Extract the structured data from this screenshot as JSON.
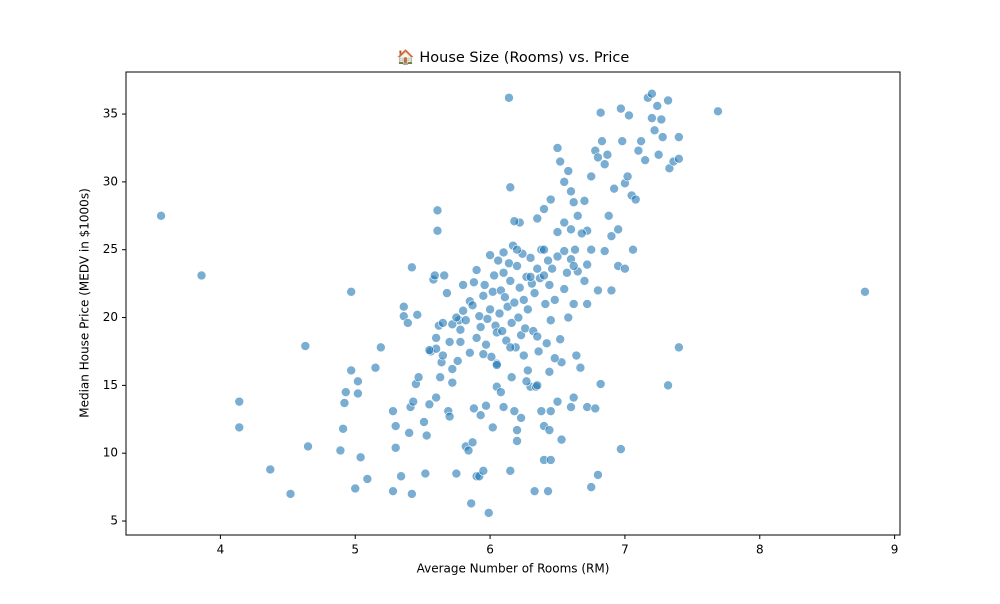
{
  "chart_data": {
    "type": "scatter",
    "title": "🏠 House Size (Rooms) vs. Price",
    "x_label": "Average Number of Rooms (RM)",
    "y_label": "Median House Price (MEDV in $1000s)",
    "color": "#1f77b4",
    "grid": false,
    "xlim": [
      3.3,
      9.04
    ],
    "ylim": [
      3.97,
      38.1
    ],
    "xticks": [
      4,
      5,
      6,
      7,
      8,
      9
    ],
    "yticks": [
      5,
      10,
      15,
      20,
      25,
      30,
      35
    ],
    "x": [
      3.56,
      3.86,
      4.14,
      4.14,
      4.37,
      4.52,
      4.63,
      4.65,
      4.97,
      4.97,
      4.89,
      4.91,
      4.92,
      4.93,
      5.0,
      5.02,
      5.02,
      5.04,
      5.09,
      5.15,
      5.19,
      5.28,
      5.28,
      5.3,
      5.3,
      5.34,
      5.36,
      5.36,
      5.39,
      5.4,
      5.41,
      5.42,
      5.42,
      5.43,
      5.45,
      5.46,
      5.47,
      5.51,
      5.52,
      5.53,
      5.55,
      5.56,
      5.58,
      5.59,
      5.6,
      5.6,
      5.61,
      5.61,
      5.62,
      5.63,
      5.64,
      5.65,
      5.66,
      5.68,
      5.69,
      5.7,
      5.72,
      5.72,
      5.75,
      5.77,
      5.78,
      5.8,
      5.82,
      5.84,
      5.86,
      5.87,
      5.88,
      5.9,
      5.92,
      5.95,
      5.99,
      5.93,
      5.97,
      6.02,
      6.05,
      6.08,
      6.1,
      6.14,
      6.15,
      6.15,
      6.16,
      6.18,
      6.2,
      6.2,
      6.23,
      6.28,
      6.3,
      6.33,
      6.34,
      6.38,
      6.4,
      6.4,
      6.43,
      6.44,
      6.45,
      6.45,
      6.5,
      6.53,
      6.6,
      6.62,
      6.64,
      6.67,
      6.72,
      6.75,
      6.78,
      6.8,
      6.82,
      6.97,
      7.32,
      7.4,
      8.78,
      7.69,
      6.5,
      6.52,
      6.55,
      6.58,
      6.6,
      6.62,
      6.65,
      6.7,
      6.72,
      6.75,
      6.78,
      6.8,
      6.82,
      6.83,
      6.85,
      6.87,
      6.88,
      6.9,
      6.92,
      6.95,
      6.97,
      6.98,
      7.0,
      7.02,
      7.03,
      7.05,
      7.08,
      7.1,
      7.12,
      7.15,
      7.17,
      7.2,
      7.2,
      7.22,
      7.24,
      7.25,
      7.27,
      7.28,
      7.32,
      7.33,
      7.36,
      7.4,
      7.4,
      6.95,
      7.0,
      7.06,
      6.9,
      6.85,
      6.8,
      6.72,
      6.75,
      6.68,
      6.6,
      6.55,
      6.5,
      6.45,
      6.4,
      6.35,
      6.22,
      6.18,
      5.72,
      5.75,
      5.78,
      5.8,
      5.82,
      5.85,
      5.87,
      5.88,
      5.9,
      5.9,
      5.92,
      5.93,
      5.95,
      5.96,
      5.97,
      5.98,
      6.0,
      6.0,
      6.01,
      6.02,
      6.03,
      6.04,
      6.05,
      6.06,
      6.07,
      6.08,
      6.09,
      6.1,
      6.11,
      6.12,
      6.13,
      6.14,
      6.15,
      6.16,
      6.17,
      6.18,
      6.19,
      6.2,
      6.21,
      6.22,
      6.23,
      6.24,
      6.25,
      6.26,
      6.27,
      6.28,
      6.3,
      6.31,
      6.32,
      6.33,
      6.35,
      6.36,
      6.37,
      6.38,
      6.4,
      6.41,
      6.42,
      6.43,
      6.44,
      6.45,
      6.46,
      6.48,
      6.5,
      6.52,
      6.53,
      6.55,
      6.57,
      6.6,
      6.62,
      6.63,
      6.65,
      6.7,
      6.72,
      6.58,
      6.48,
      6.44,
      6.35,
      6.25,
      6.15,
      6.05,
      5.95,
      5.85,
      5.76,
      5.7,
      5.65,
      5.6,
      5.55,
      6.1,
      6.2,
      6.3,
      6.4,
      6.55,
      6.62,
      6.05,
      6.27,
      6.35
    ],
    "values": [
      27.5,
      23.1,
      13.8,
      11.9,
      8.8,
      7.0,
      17.9,
      10.5,
      21.9,
      16.1,
      10.2,
      11.8,
      13.7,
      14.5,
      7.4,
      15.3,
      14.4,
      9.7,
      8.1,
      16.3,
      17.8,
      13.1,
      7.2,
      10.4,
      12.0,
      8.3,
      20.1,
      20.8,
      19.6,
      11.5,
      13.4,
      7.0,
      23.7,
      13.8,
      15.1,
      20.2,
      15.6,
      12.3,
      8.5,
      11.3,
      13.6,
      17.5,
      22.8,
      23.1,
      17.7,
      14.1,
      26.4,
      27.9,
      19.4,
      15.6,
      16.7,
      17.2,
      23.1,
      21.8,
      13.1,
      12.7,
      16.2,
      15.2,
      8.5,
      19.8,
      18.2,
      22.4,
      10.5,
      10.2,
      6.3,
      10.8,
      13.3,
      8.3,
      8.3,
      8.7,
      5.6,
      12.8,
      13.5,
      11.9,
      14.9,
      14.5,
      13.4,
      36.2,
      29.6,
      8.7,
      15.6,
      13.1,
      10.9,
      11.7,
      12.6,
      16.1,
      14.9,
      7.2,
      14.9,
      13.1,
      9.5,
      12.0,
      7.2,
      11.7,
      13.1,
      9.5,
      13.8,
      11.0,
      13.4,
      14.1,
      17.2,
      16.3,
      13.4,
      7.5,
      13.3,
      8.4,
      15.1,
      10.3,
      15.0,
      17.8,
      21.9,
      35.2,
      32.5,
      31.5,
      30.0,
      30.8,
      29.3,
      28.5,
      27.5,
      28.6,
      26.4,
      30.4,
      32.3,
      31.8,
      35.1,
      33.0,
      31.3,
      32.0,
      27.5,
      26.0,
      29.5,
      26.5,
      35.4,
      33.0,
      29.9,
      30.4,
      34.9,
      29.0,
      28.7,
      32.3,
      33.0,
      31.6,
      36.2,
      36.5,
      34.7,
      33.8,
      35.6,
      32.0,
      34.6,
      33.3,
      36.0,
      31.0,
      31.5,
      31.7,
      33.3,
      23.8,
      23.6,
      25.0,
      22.0,
      24.9,
      22.0,
      23.9,
      25.0,
      26.2,
      26.5,
      27.0,
      26.3,
      28.7,
      28.0,
      27.3,
      27.0,
      27.1,
      19.5,
      20.0,
      19.1,
      20.5,
      19.8,
      21.2,
      20.9,
      22.6,
      18.5,
      23.5,
      20.1,
      19.3,
      21.6,
      22.4,
      18.0,
      19.9,
      24.6,
      20.6,
      17.1,
      21.9,
      23.1,
      19.4,
      18.9,
      24.2,
      20.3,
      22.0,
      19.0,
      23.3,
      21.5,
      18.3,
      20.8,
      24.0,
      22.7,
      19.6,
      25.3,
      21.1,
      17.8,
      23.8,
      20.0,
      22.2,
      18.7,
      24.7,
      21.3,
      19.2,
      23.0,
      20.6,
      24.4,
      22.5,
      19.0,
      21.8,
      23.6,
      17.5,
      22.9,
      25.0,
      23.1,
      21.0,
      18.1,
      24.2,
      22.4,
      19.8,
      23.6,
      21.3,
      24.5,
      18.4,
      16.7,
      22.1,
      23.3,
      24.3,
      21.0,
      25.0,
      23.4,
      22.7,
      21.0,
      20.0,
      17.0,
      16.0,
      18.6,
      17.2,
      17.8,
      16.6,
      17.3,
      17.4,
      16.8,
      18.2,
      19.6,
      18.5,
      17.6,
      24.8,
      25.0,
      23.0,
      25.0,
      24.9,
      23.8,
      16.5,
      15.3,
      15.0
    ]
  }
}
